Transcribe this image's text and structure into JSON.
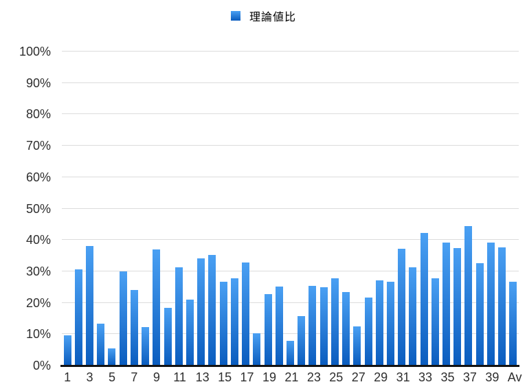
{
  "legend": {
    "label": "理論値比"
  },
  "chart_data": {
    "type": "bar",
    "title": "",
    "series_name": "理論値比",
    "legend_position": "top-center",
    "grid": true,
    "ylim": [
      0,
      100
    ],
    "y_ticks": [
      0,
      10,
      20,
      30,
      40,
      50,
      60,
      70,
      80,
      90,
      100
    ],
    "y_tick_suffix": "%",
    "categories": [
      "1",
      "2",
      "3",
      "4",
      "5",
      "6",
      "7",
      "8",
      "9",
      "10",
      "11",
      "12",
      "13",
      "14",
      "15",
      "16",
      "17",
      "18",
      "19",
      "20",
      "21",
      "22",
      "23",
      "24",
      "25",
      "26",
      "27",
      "28",
      "29",
      "30",
      "31",
      "32",
      "33",
      "34",
      "35",
      "36",
      "37",
      "38",
      "39",
      "40",
      "Av"
    ],
    "x_tick_labels_shown": [
      "1",
      "3",
      "5",
      "7",
      "9",
      "11",
      "13",
      "15",
      "17",
      "19",
      "21",
      "23",
      "25",
      "27",
      "29",
      "31",
      "33",
      "35",
      "37",
      "39",
      "Av"
    ],
    "values": [
      9.7,
      30.6,
      38.0,
      13.4,
      5.5,
      30.0,
      24.1,
      12.3,
      37.0,
      18.5,
      31.3,
      21.0,
      34.1,
      35.3,
      26.7,
      27.8,
      32.8,
      10.3,
      22.8,
      25.2,
      7.9,
      15.7,
      25.3,
      25.0,
      27.7,
      23.4,
      12.5,
      21.7,
      27.2,
      26.7,
      37.2,
      31.4,
      42.2,
      27.8,
      39.1,
      37.5,
      44.4,
      32.7,
      39.2,
      37.6,
      26.8
    ],
    "colors": {
      "bar_gradient_top": "#4AA0F3",
      "bar_gradient_bottom": "#0A5CBE",
      "gridline": "#DCDCDC",
      "axis_line": "#131313",
      "tick_text": "#2E2E2E",
      "background": "#FFFFFF"
    }
  }
}
